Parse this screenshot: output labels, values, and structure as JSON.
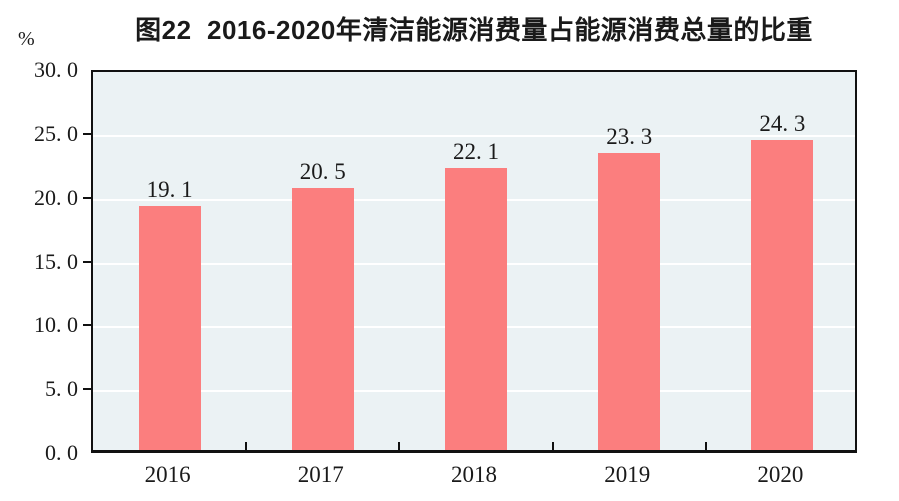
{
  "figure": {
    "title": "图22  2016-2020年清洁能源消费量占能源消费总量的比重",
    "y_unit": "%"
  },
  "chart_data": {
    "type": "bar",
    "title": "图22  2016-2020年清洁能源消费量占能源消费总量的比重",
    "categories": [
      "2016",
      "2017",
      "2018",
      "2019",
      "2020"
    ],
    "values": [
      19.1,
      20.5,
      22.1,
      23.3,
      24.3
    ],
    "value_labels": [
      "19. 1",
      "20. 5",
      "22. 1",
      "23. 3",
      "24. 3"
    ],
    "xlabel": "",
    "ylabel": "%",
    "ylim": [
      0,
      30
    ],
    "y_tick_step": 5,
    "y_tick_labels": [
      "0. 0",
      "5. 0",
      "10. 0",
      "15. 0",
      "20. 0",
      "25. 0",
      "30. 0"
    ],
    "grid": true,
    "legend": "none",
    "colors": {
      "bar": "#fb7e7e",
      "plot_bg": "#ebf2f4",
      "gridline": "#ffffff",
      "axis": "#111111",
      "text": "#1a1a1a"
    }
  }
}
